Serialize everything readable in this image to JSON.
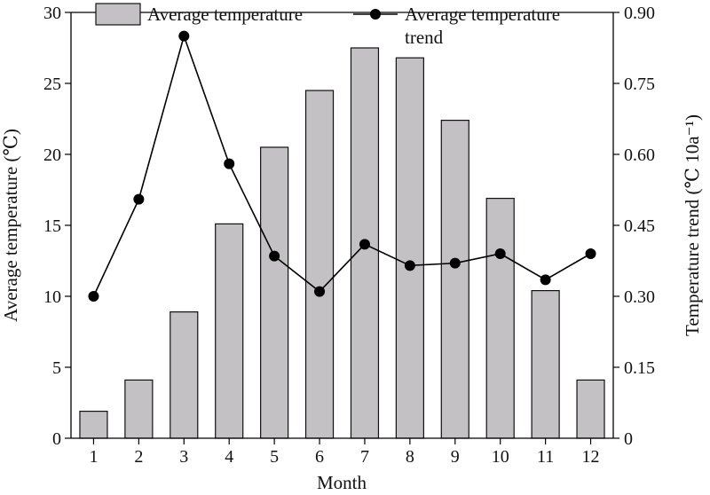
{
  "chart_data": {
    "type": "bar",
    "xlabel": "Month",
    "ylabel_left": "Average temperature (℃)",
    "ylabel_right": "Temperature trend (℃ 10a⁻¹)",
    "categories": [
      "1",
      "2",
      "3",
      "4",
      "5",
      "6",
      "7",
      "8",
      "9",
      "10",
      "11",
      "12"
    ],
    "ylim_left": [
      0,
      30
    ],
    "yticks_left": [
      0,
      5,
      10,
      15,
      20,
      25,
      30
    ],
    "ylim_right": [
      0,
      0.9
    ],
    "yticks_right": [
      "0",
      "0.15",
      "0.30",
      "0.45",
      "0.60",
      "0.75",
      "0.90"
    ],
    "legend_position": "top",
    "grid": false,
    "series": [
      {
        "name": "Average temperature",
        "type": "bar",
        "axis": "left",
        "values": [
          1.9,
          4.1,
          8.9,
          15.1,
          20.5,
          24.5,
          27.5,
          26.8,
          22.4,
          16.9,
          10.4,
          4.1
        ],
        "color": "#c4c1c4"
      },
      {
        "name": "Average temperature trend",
        "type": "line",
        "axis": "right",
        "values": [
          0.3,
          0.505,
          0.85,
          0.58,
          0.385,
          0.31,
          0.41,
          0.365,
          0.37,
          0.39,
          0.335,
          0.39
        ],
        "color": "#000000"
      }
    ]
  }
}
